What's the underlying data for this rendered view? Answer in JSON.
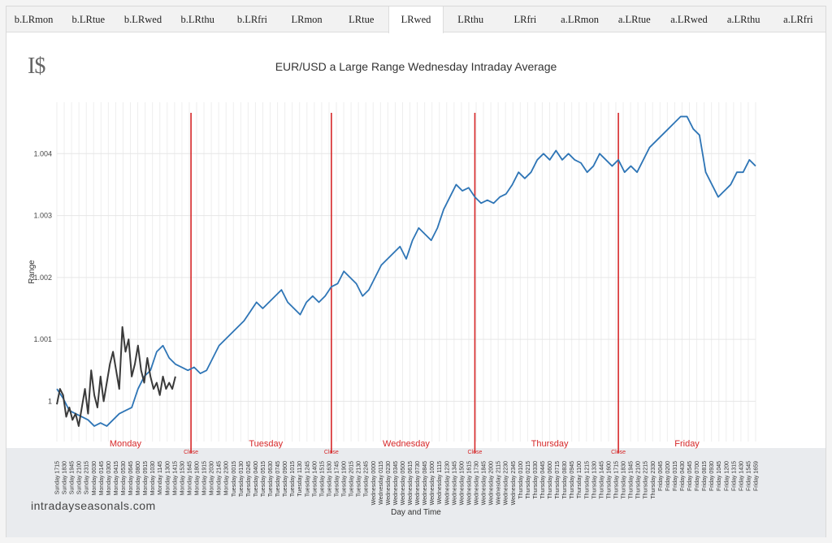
{
  "tabs": [
    {
      "label": "b.LRmon"
    },
    {
      "label": "b.LRtue"
    },
    {
      "label": "b.LRwed"
    },
    {
      "label": "b.LRthu"
    },
    {
      "label": "b.LRfri"
    },
    {
      "label": "LRmon"
    },
    {
      "label": "LRtue"
    },
    {
      "label": "LRwed"
    },
    {
      "label": "LRthu"
    },
    {
      "label": "LRfri"
    },
    {
      "label": "a.LRmon"
    },
    {
      "label": "a.LRtue"
    },
    {
      "label": "a.LRwed"
    },
    {
      "label": "a.LRthu"
    },
    {
      "label": "a.LRfri"
    }
  ],
  "active_tab": "LRwed",
  "logo": "I$",
  "site": "intradayseasonals.com",
  "chart_data": {
    "type": "line",
    "title": "EUR/USD a Large Range Wednesday Intraday Average",
    "xlabel": "Day and Time",
    "ylabel": "Range",
    "ylim": [
      0.99935,
      1.00483
    ],
    "yticks": [
      1,
      1.001,
      1.002,
      1.003,
      1.004
    ],
    "ytick_labels": [
      "1",
      "1.001",
      "1.002",
      "1.003",
      "1.004"
    ],
    "x_range": [
      0,
      112
    ],
    "grid": true,
    "colors": {
      "average": "#2e75b6",
      "current": "#3a3a3a",
      "close_line": "#d62728",
      "day_label": "#d62728"
    },
    "x_tick_labels": [
      "Sunday 1715",
      "Sunday 1830",
      "Sunday 1945",
      "Sunday 2100",
      "Sunday 2315",
      "Monday 0030",
      "Monday 0145",
      "Monday 0300",
      "Monday 0415",
      "Monday 0530",
      "Monday 0645",
      "Monday 0800",
      "Monday 0915",
      "Monday 1030",
      "Monday 1145",
      "Monday 1300",
      "Monday 1415",
      "Monday 1530",
      "Monday 1645",
      "Monday 1800",
      "Monday 1915",
      "Monday 2030",
      "Monday 2145",
      "Monday 2300",
      "Tuesday 0015",
      "Tuesday 0130",
      "Tuesday 0245",
      "Tuesday 0400",
      "Tuesday 0515",
      "Tuesday 0630",
      "Tuesday 0745",
      "Tuesday 0900",
      "Tuesday 1015",
      "Tuesday 1130",
      "Tuesday 1245",
      "Tuesday 1400",
      "Tuesday 1515",
      "Tuesday 1630",
      "Tuesday 1745",
      "Tuesday 1900",
      "Tuesday 2015",
      "Tuesday 2130",
      "Tuesday 2245",
      "Wednesday 0000",
      "Wednesday 0115",
      "Wednesday 0230",
      "Wednesday 0345",
      "Wednesday 0500",
      "Wednesday 0615",
      "Wednesday 0730",
      "Wednesday 0845",
      "Wednesday 1000",
      "Wednesday 1115",
      "Wednesday 1230",
      "Wednesday 1345",
      "Wednesday 1500",
      "Wednesday 1615",
      "Wednesday 1730",
      "Wednesday 1845",
      "Wednesday 2000",
      "Wednesday 2115",
      "Wednesday 2230",
      "Wednesday 2345",
      "Thursday 0100",
      "Thursday 0215",
      "Thursday 0330",
      "Thursday 0445",
      "Thursday 0600",
      "Thursday 0715",
      "Thursday 0830",
      "Thursday 0945",
      "Thursday 1100",
      "Thursday 1215",
      "Thursday 1330",
      "Thursday 1445",
      "Thursday 1600",
      "Thursday 1715",
      "Thursday 1830",
      "Thursday 1945",
      "Thursday 2100",
      "Thursday 2215",
      "Thursday 2330",
      "Friday 0045",
      "Friday 0200",
      "Friday 0315",
      "Friday 0430",
      "Friday 0545",
      "Friday 0700",
      "Friday 0815",
      "Friday 0930",
      "Friday 1045",
      "Friday 1200",
      "Friday 1315",
      "Friday 1430",
      "Friday 1545",
      "Friday 1659"
    ],
    "day_labels": [
      {
        "label": "Monday",
        "x": 11
      },
      {
        "label": "Tuesday",
        "x": 33.5
      },
      {
        "label": "Wednesday",
        "x": 56
      },
      {
        "label": "Thursday",
        "x": 79
      },
      {
        "label": "Friday",
        "x": 101
      }
    ],
    "close_lines": [
      {
        "x": 21.5,
        "label": "Close"
      },
      {
        "x": 44,
        "label": "Close"
      },
      {
        "x": 67,
        "label": "Close"
      },
      {
        "x": 90,
        "label": "Close"
      }
    ],
    "series": [
      {
        "name": "average",
        "x": [
          0,
          1,
          2,
          3,
          4,
          5,
          6,
          7,
          8,
          9,
          10,
          11,
          12,
          13,
          14,
          15,
          16,
          17,
          18,
          19,
          20,
          21,
          22,
          23,
          24,
          25,
          26,
          27,
          28,
          29,
          30,
          31,
          32,
          33,
          34,
          35,
          36,
          37,
          38,
          39,
          40,
          41,
          42,
          43,
          44,
          45,
          46,
          47,
          48,
          49,
          50,
          51,
          52,
          53,
          54,
          55,
          56,
          57,
          58,
          59,
          60,
          61,
          62,
          63,
          64,
          65,
          66,
          67,
          68,
          69,
          70,
          71,
          72,
          73,
          74,
          75,
          76,
          77,
          78,
          79,
          80,
          81,
          82,
          83,
          84,
          85,
          86,
          87,
          88,
          89,
          90,
          91,
          92,
          93,
          94,
          95,
          96,
          97,
          98,
          99,
          100,
          101,
          102,
          103,
          104,
          105,
          106,
          107,
          108,
          109,
          110,
          111,
          112
        ],
        "values": [
          1.0002,
          1.00005,
          0.99985,
          0.9998,
          0.99975,
          0.9997,
          0.9996,
          0.99965,
          0.9996,
          0.9997,
          0.9998,
          0.99985,
          0.9999,
          1.0002,
          1.0004,
          1.0005,
          1.0008,
          1.0009,
          1.0007,
          1.0006,
          1.00055,
          1.0005,
          1.00055,
          1.00045,
          1.0005,
          1.0007,
          1.0009,
          1.001,
          1.0011,
          1.0012,
          1.0013,
          1.00145,
          1.0016,
          1.0015,
          1.0016,
          1.0017,
          1.0018,
          1.0016,
          1.0015,
          1.0014,
          1.0016,
          1.0017,
          1.0016,
          1.0017,
          1.00185,
          1.0019,
          1.0021,
          1.002,
          1.0019,
          1.0017,
          1.0018,
          1.002,
          1.0022,
          1.0023,
          1.0024,
          1.0025,
          1.0023,
          1.0026,
          1.0028,
          1.0027,
          1.0026,
          1.0028,
          1.0031,
          1.0033,
          1.0035,
          1.0034,
          1.00345,
          1.0033,
          1.0032,
          1.00325,
          1.0032,
          1.0033,
          1.00335,
          1.0035,
          1.0037,
          1.0036,
          1.0037,
          1.0039,
          1.004,
          1.0039,
          1.00405,
          1.0039,
          1.004,
          1.0039,
          1.00385,
          1.0037,
          1.0038,
          1.004,
          1.0039,
          1.0038,
          1.0039,
          1.0037,
          1.0038,
          1.0037,
          1.0039,
          1.0041,
          1.0042,
          1.0043,
          1.0044,
          1.0045,
          1.0046,
          1.0046,
          1.0044,
          1.0043,
          1.0037,
          1.0035,
          1.0033,
          1.0034,
          1.0035,
          1.0037,
          1.0037,
          1.0039,
          1.0038
        ]
      },
      {
        "name": "current",
        "x": [
          0,
          0.5,
          1,
          1.5,
          2,
          2.5,
          3,
          3.5,
          4,
          4.5,
          5,
          5.5,
          6,
          6.5,
          7,
          7.5,
          8,
          8.5,
          9,
          9.5,
          10,
          10.5,
          11,
          11.5,
          12,
          12.5,
          13,
          13.5,
          14,
          14.5,
          15,
          15.5,
          16,
          16.5,
          17,
          17.5,
          18,
          18.5,
          19
        ],
        "values": [
          0.99995,
          1.0002,
          1.0001,
          0.99975,
          0.9999,
          0.9997,
          0.9998,
          0.9996,
          0.9999,
          1.0002,
          0.9998,
          1.0005,
          1.0001,
          0.9999,
          1.0004,
          1.0,
          1.0003,
          1.0006,
          1.0008,
          1.0005,
          1.0002,
          1.0012,
          1.0008,
          1.001,
          1.0004,
          1.0006,
          1.0009,
          1.0005,
          1.0003,
          1.0007,
          1.0004,
          1.0002,
          1.0003,
          1.0001,
          1.0004,
          1.0002,
          1.0003,
          1.0002,
          1.0004
        ]
      }
    ]
  }
}
